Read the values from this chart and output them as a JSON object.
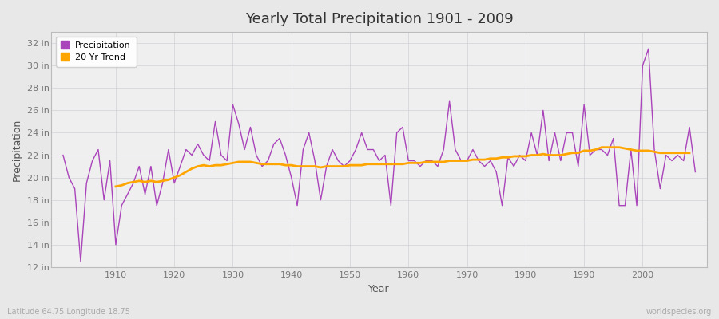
{
  "title": "Yearly Total Precipitation 1901 - 2009",
  "xlabel": "Year",
  "ylabel": "Precipitation",
  "lat_lon_label": "Latitude 64.75 Longitude 18.75",
  "watermark": "worldspecies.org",
  "line_color": "#AA44BB",
  "trend_color": "#FFA500",
  "bg_color": "#E8E8E8",
  "plot_bg_color": "#EFEFEF",
  "grid_color": "#D0D0D8",
  "ylim": [
    12,
    33
  ],
  "yticks": [
    12,
    14,
    16,
    18,
    20,
    22,
    24,
    26,
    28,
    30,
    32
  ],
  "years": [
    1901,
    1902,
    1903,
    1904,
    1905,
    1906,
    1907,
    1908,
    1909,
    1910,
    1911,
    1912,
    1913,
    1914,
    1915,
    1916,
    1917,
    1918,
    1919,
    1920,
    1921,
    1922,
    1923,
    1924,
    1925,
    1926,
    1927,
    1928,
    1929,
    1930,
    1931,
    1932,
    1933,
    1934,
    1935,
    1936,
    1937,
    1938,
    1939,
    1940,
    1941,
    1942,
    1943,
    1944,
    1945,
    1946,
    1947,
    1948,
    1949,
    1950,
    1951,
    1952,
    1953,
    1954,
    1955,
    1956,
    1957,
    1958,
    1959,
    1960,
    1961,
    1962,
    1963,
    1964,
    1965,
    1966,
    1967,
    1968,
    1969,
    1970,
    1971,
    1972,
    1973,
    1974,
    1975,
    1976,
    1977,
    1978,
    1979,
    1980,
    1981,
    1982,
    1983,
    1984,
    1985,
    1986,
    1987,
    1988,
    1989,
    1990,
    1991,
    1992,
    1993,
    1994,
    1995,
    1996,
    1997,
    1998,
    1999,
    2000,
    2001,
    2002,
    2003,
    2004,
    2005,
    2006,
    2007,
    2008,
    2009
  ],
  "precip": [
    22.0,
    20.0,
    19.0,
    12.5,
    19.5,
    21.5,
    22.5,
    18.0,
    21.5,
    14.0,
    17.5,
    18.5,
    19.5,
    21.0,
    18.5,
    21.0,
    17.5,
    19.5,
    22.5,
    19.5,
    21.0,
    22.5,
    22.0,
    23.0,
    22.0,
    21.5,
    25.0,
    22.0,
    21.5,
    26.5,
    24.8,
    22.5,
    24.5,
    22.0,
    21.0,
    21.5,
    23.0,
    23.5,
    22.0,
    20.0,
    17.5,
    22.5,
    24.0,
    21.5,
    18.0,
    21.0,
    22.5,
    21.5,
    21.0,
    21.5,
    22.5,
    24.0,
    22.5,
    22.5,
    21.5,
    22.0,
    17.5,
    24.0,
    24.5,
    21.5,
    21.5,
    21.0,
    21.5,
    21.5,
    21.0,
    22.5,
    26.8,
    22.5,
    21.5,
    21.5,
    22.5,
    21.5,
    21.0,
    21.5,
    20.5,
    17.5,
    21.8,
    21.0,
    22.0,
    21.5,
    24.0,
    22.0,
    26.0,
    21.5,
    24.0,
    21.5,
    24.0,
    24.0,
    21.0,
    26.5,
    22.0,
    22.5,
    22.5,
    22.0,
    23.5,
    17.5,
    17.5,
    22.5,
    17.5,
    30.0,
    31.5,
    22.5,
    19.0,
    22.0,
    21.5,
    22.0,
    21.5,
    24.5,
    20.5
  ],
  "trend": [
    null,
    null,
    null,
    null,
    null,
    null,
    null,
    null,
    null,
    19.2,
    19.3,
    19.5,
    19.6,
    19.7,
    19.6,
    19.7,
    19.6,
    19.7,
    19.8,
    20.0,
    20.2,
    20.5,
    20.8,
    21.0,
    21.1,
    21.0,
    21.1,
    21.1,
    21.2,
    21.3,
    21.4,
    21.4,
    21.4,
    21.3,
    21.2,
    21.2,
    21.2,
    21.2,
    21.1,
    21.1,
    21.0,
    21.0,
    21.0,
    21.0,
    20.9,
    21.0,
    21.0,
    21.0,
    21.0,
    21.1,
    21.1,
    21.1,
    21.2,
    21.2,
    21.2,
    21.2,
    21.2,
    21.2,
    21.2,
    21.3,
    21.3,
    21.3,
    21.4,
    21.4,
    21.4,
    21.4,
    21.5,
    21.5,
    21.5,
    21.5,
    21.6,
    21.6,
    21.6,
    21.7,
    21.7,
    21.8,
    21.8,
    21.9,
    21.9,
    21.9,
    22.0,
    22.0,
    22.1,
    22.0,
    22.0,
    22.0,
    22.1,
    22.2,
    22.2,
    22.4,
    22.4,
    22.5,
    22.7,
    22.7,
    22.7,
    22.7,
    22.6,
    22.5,
    22.4,
    22.4,
    22.4,
    22.3,
    22.2,
    22.2,
    22.2,
    22.2,
    22.2,
    22.2,
    null
  ]
}
